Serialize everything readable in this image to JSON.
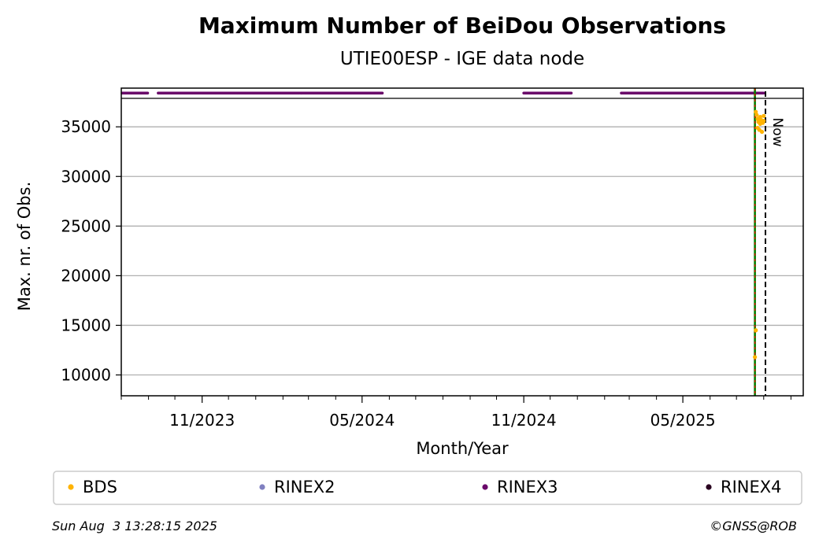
{
  "chart_data": {
    "type": "scatter",
    "title": "Maximum Number of BeiDou Observations",
    "subtitle": "UTIE00ESP - IGE data node",
    "xlabel": "Month/Year",
    "ylabel": "Max. nr. of Obs.",
    "x_ticks": [
      {
        "label": "11/2023",
        "date": "2023-11-01"
      },
      {
        "label": "05/2024",
        "date": "2024-05-01"
      },
      {
        "label": "11/2024",
        "date": "2024-11-01"
      },
      {
        "label": "05/2025",
        "date": "2025-05-01"
      }
    ],
    "xlim": [
      "2023-08-01",
      "2025-09-15"
    ],
    "y_ticks": [
      10000,
      15000,
      20000,
      25000,
      30000,
      35000
    ],
    "ylim": [
      7900,
      38900
    ],
    "grid": "horizontal",
    "rinex_band_y": 38400,
    "rinex3_periods": [
      [
        "2023-08-02",
        "2023-08-31"
      ],
      [
        "2023-09-12",
        "2023-12-31"
      ],
      [
        "2024-01-01",
        "2024-05-24"
      ],
      [
        "2024-11-01",
        "2024-12-25"
      ],
      [
        "2025-02-20",
        "2025-08-01"
      ]
    ],
    "series": [
      {
        "name": "BDS",
        "color": "#FFB300",
        "points": [
          {
            "x": "2025-07-22",
            "y": 11800
          },
          {
            "x": "2025-07-23",
            "y": 14500
          },
          {
            "x": "2025-07-23",
            "y": 36500
          },
          {
            "x": "2025-07-24",
            "y": 36200
          },
          {
            "x": "2025-07-25",
            "y": 35800
          },
          {
            "x": "2025-07-25",
            "y": 34900
          },
          {
            "x": "2025-07-26",
            "y": 35500
          },
          {
            "x": "2025-07-27",
            "y": 34700
          },
          {
            "x": "2025-07-28",
            "y": 36000
          },
          {
            "x": "2025-07-28",
            "y": 35300
          },
          {
            "x": "2025-07-29",
            "y": 35700
          },
          {
            "x": "2025-07-30",
            "y": 34500
          },
          {
            "x": "2025-07-31",
            "y": 35400
          },
          {
            "x": "2025-08-01",
            "y": 36100
          },
          {
            "x": "2025-08-01",
            "y": 35600
          }
        ]
      },
      {
        "name": "RINEX2",
        "color": "#8080C0",
        "points": []
      },
      {
        "name": "RINEX3",
        "color": "#6A0A6A",
        "points": []
      },
      {
        "name": "RINEX4",
        "color": "#2A0020",
        "points": []
      }
    ],
    "vlines": [
      {
        "date": "2025-07-22",
        "style": "green-red-dashed"
      },
      {
        "date": "2025-08-03",
        "style": "black-dashed",
        "label": "Now"
      }
    ],
    "legend_position": "bottom"
  },
  "footer": {
    "timestamp": "Sun Aug  3 13:28:15 2025",
    "copyright": "©GNSS@ROB"
  }
}
